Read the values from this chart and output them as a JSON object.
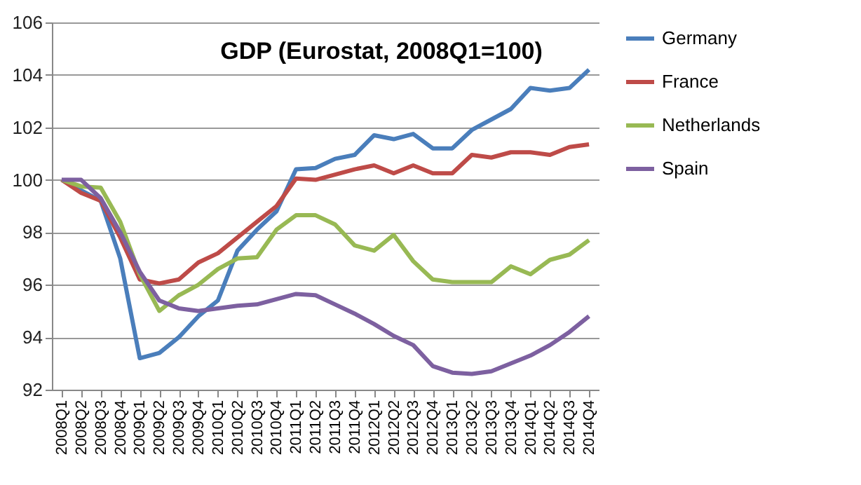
{
  "chart_data": {
    "type": "line",
    "title": "GDP (Eurostat, 2008Q1=100)",
    "categories": [
      "2008Q1",
      "2008Q2",
      "2008Q3",
      "2008Q4",
      "2009Q1",
      "2009Q2",
      "2009Q3",
      "2009Q4",
      "2010Q1",
      "2010Q2",
      "2010Q3",
      "2010Q4",
      "2011Q1",
      "2011Q2",
      "2011Q3",
      "2011Q4",
      "2012Q1",
      "2012Q2",
      "2012Q3",
      "2012Q4",
      "2013Q1",
      "2013Q2",
      "2013Q3",
      "2013Q4",
      "2014Q1",
      "2014Q2",
      "2014Q3",
      "2014Q4"
    ],
    "series": [
      {
        "name": "Germany",
        "color": "#4a7ebb",
        "values": [
          100,
          99.6,
          99.2,
          97,
          93.2,
          93.4,
          94,
          94.8,
          95.4,
          97.3,
          98.1,
          98.8,
          100.4,
          100.45,
          100.8,
          100.95,
          101.7,
          101.55,
          101.75,
          101.2,
          101.2,
          101.9,
          102.3,
          102.7,
          103.5,
          103.4,
          103.5,
          104.2
        ]
      },
      {
        "name": "France",
        "color": "#be4b48",
        "values": [
          100,
          99.5,
          99.2,
          97.8,
          96.2,
          96.05,
          96.2,
          96.85,
          97.2,
          97.8,
          98.4,
          99,
          100.05,
          100,
          100.2,
          100.4,
          100.55,
          100.25,
          100.55,
          100.25,
          100.25,
          100.95,
          100.85,
          101.05,
          101.05,
          100.95,
          101.25,
          101.35
        ]
      },
      {
        "name": "Netherlands",
        "color": "#98b954",
        "values": [
          100,
          99.75,
          99.7,
          98.4,
          96.4,
          95,
          95.6,
          96,
          96.6,
          97,
          97.05,
          98.1,
          98.65,
          98.65,
          98.3,
          97.5,
          97.3,
          97.9,
          96.9,
          96.2,
          96.1,
          96.1,
          96.1,
          96.7,
          96.4,
          96.95,
          97.15,
          97.7
        ]
      },
      {
        "name": "Spain",
        "color": "#7d60a0",
        "values": [
          100,
          100,
          99.3,
          98,
          96.5,
          95.4,
          95.1,
          95,
          95.1,
          95.2,
          95.25,
          95.45,
          95.65,
          95.6,
          95.25,
          94.9,
          94.5,
          94.05,
          93.7,
          92.9,
          92.65,
          92.6,
          92.7,
          93,
          93.3,
          93.7,
          94.2,
          94.8
        ]
      }
    ],
    "ylim": [
      92,
      106
    ],
    "yticks": [
      92,
      94,
      96,
      98,
      100,
      102,
      104,
      106
    ],
    "grid": "y",
    "legend": "right",
    "marker": "none",
    "line_style": "solid"
  }
}
